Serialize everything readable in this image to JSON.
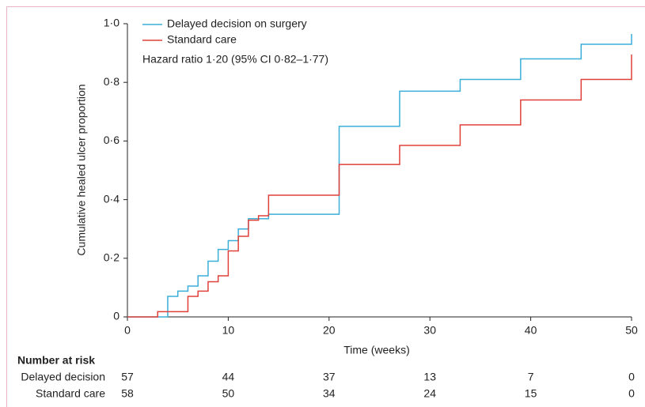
{
  "chart_data": {
    "type": "step",
    "x_label": "Time (weeks)",
    "y_label": "Cumulative healed ulcer proportion",
    "annotation": "Hazard ratio 1·20 (95% CI 0·82–1·77)",
    "xlim": [
      0,
      50
    ],
    "ylim": [
      0,
      1.0
    ],
    "xticks": [
      0,
      10,
      20,
      30,
      40,
      50
    ],
    "yticks": [
      0,
      {
        "value": 0.2,
        "label": "0·2"
      },
      {
        "value": 0.4,
        "label": "0·4"
      },
      {
        "value": 0.6,
        "label": "0·6"
      },
      {
        "value": 0.8,
        "label": "0·8"
      },
      {
        "value": 1.0,
        "label": "1·0"
      }
    ],
    "series": [
      {
        "name": "Delayed decision on surgery",
        "color": "#3aaed8",
        "x": [
          0,
          4,
          5,
          6,
          7,
          8,
          9,
          10,
          11,
          12,
          14,
          21,
          27,
          33,
          39,
          45,
          50
        ],
        "values": [
          0,
          0.07,
          0.088,
          0.105,
          0.14,
          0.19,
          0.23,
          0.26,
          0.3,
          0.335,
          0.35,
          0.65,
          0.77,
          0.81,
          0.88,
          0.93,
          0.965
        ]
      },
      {
        "name": "Standard care",
        "color": "#e0403a",
        "x": [
          0,
          3,
          6,
          7,
          8,
          9,
          10,
          11,
          12,
          13,
          14,
          21,
          27,
          33,
          39,
          45,
          50
        ],
        "values": [
          0,
          0.018,
          0.07,
          0.088,
          0.12,
          0.14,
          0.225,
          0.275,
          0.33,
          0.345,
          0.415,
          0.52,
          0.585,
          0.655,
          0.74,
          0.81,
          0.895
        ]
      }
    ],
    "risk_table": {
      "title": "Number at risk",
      "rows": [
        {
          "label": "Delayed decision",
          "values": [
            57,
            44,
            37,
            13,
            7,
            0
          ]
        },
        {
          "label": "Standard care",
          "values": [
            58,
            50,
            34,
            24,
            15,
            0
          ]
        }
      ]
    }
  }
}
